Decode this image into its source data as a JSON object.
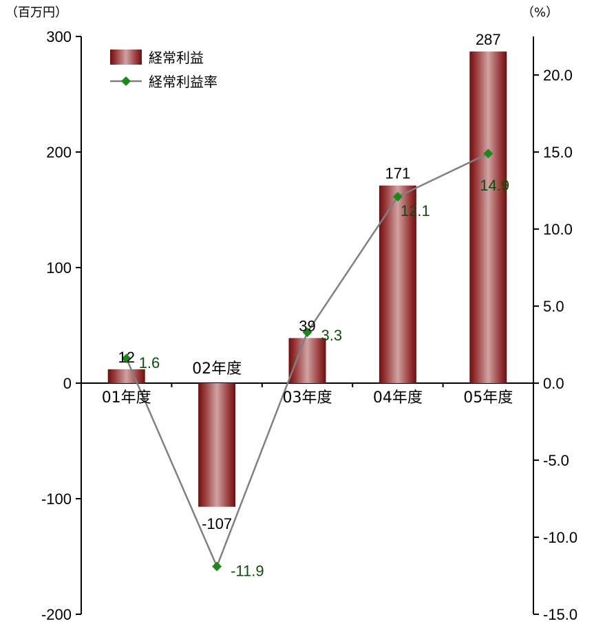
{
  "chart_data": {
    "type": "bar",
    "title": "",
    "y_left_unit": "（百万円）",
    "y_right_unit": "（%）",
    "categories": [
      "01年度",
      "02年度",
      "03年度",
      "04年度",
      "05年度"
    ],
    "series": [
      {
        "name": "経常利益",
        "type": "bar",
        "axis": "left",
        "values": [
          12,
          -107,
          39,
          171,
          287
        ],
        "labels": [
          "12",
          "-107",
          "39",
          "171",
          "287"
        ]
      },
      {
        "name": "経常利益率",
        "type": "line",
        "axis": "right",
        "values": [
          1.6,
          -11.9,
          3.3,
          12.1,
          14.9
        ],
        "labels": [
          "1.6",
          "-11.9",
          "3.3",
          "12.1",
          "14.9"
        ]
      }
    ],
    "y_left": {
      "min": -200,
      "max": 300,
      "ticks": [
        300,
        200,
        100,
        0,
        -100,
        -200
      ],
      "tick_labels": [
        "300",
        "200",
        "100",
        "0",
        "-100",
        "-200"
      ]
    },
    "y_right": {
      "min": -15,
      "max": 22.5,
      "ticks": [
        20,
        15,
        10,
        5,
        0,
        -5,
        -10,
        -15
      ],
      "tick_labels": [
        "20.0",
        "15.0",
        "10.0",
        "5.0",
        "0.0",
        "-5.0",
        "-10.0",
        "-15.0"
      ]
    },
    "legend_position": "top-left",
    "grid": false,
    "colors": {
      "bar": "#8b1a1a",
      "bar_highlight": "#c99595",
      "line": "#808080",
      "marker": "#1a8a1a",
      "rate_label": "#0b4f0b"
    }
  }
}
